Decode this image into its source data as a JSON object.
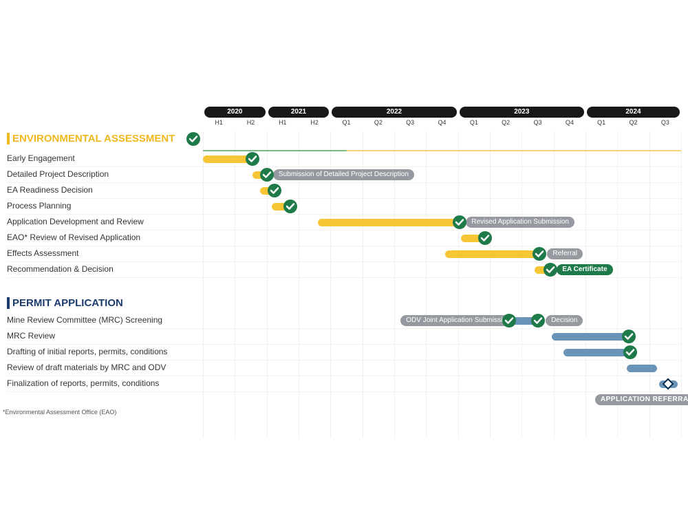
{
  "layout": {
    "label_col_width": 285,
    "timeline_width": 695,
    "total_units": 15
  },
  "colors": {
    "yellow": "#f6c637",
    "blue": "#6a93b8",
    "green": "#1e7a48",
    "gray_pill": "#969aa0",
    "black_pill": "#17181a",
    "section1_title": "#f0b81f",
    "section2_title": "#1b3b6f"
  },
  "years": [
    {
      "label": "2020",
      "start": 0,
      "span": 2,
      "subs": [
        "H1",
        "H2"
      ]
    },
    {
      "label": "2021",
      "start": 2,
      "span": 2,
      "subs": [
        "H1",
        "H2"
      ]
    },
    {
      "label": "2022",
      "start": 4,
      "span": 4,
      "subs": [
        "Q1",
        "Q2",
        "Q3",
        "Q4"
      ]
    },
    {
      "label": "2023",
      "start": 8,
      "span": 4,
      "subs": [
        "Q1",
        "Q2",
        "Q3",
        "Q4"
      ]
    },
    {
      "label": "2024",
      "start": 12,
      "span": 3,
      "subs": [
        "Q1",
        "Q2",
        "Q3"
      ]
    }
  ],
  "sections": [
    {
      "id": "env",
      "title": "ENVIRONMENTAL ASSESSMENT",
      "color": "#f0b81f",
      "title_check_at": 0,
      "rows": [
        {
          "label": "Early Engagement",
          "bars": [
            {
              "start": 0,
              "end": 1.55,
              "color": "yellow"
            }
          ],
          "checks": [
            1.55
          ]
        },
        {
          "label": "Detailed Project Description",
          "bars": [
            {
              "start": 1.55,
              "end": 2.1,
              "color": "yellow"
            }
          ],
          "checks": [
            2.0
          ],
          "pills": [
            {
              "text": "Submission of Detailed Project Description",
              "at": 2.2,
              "color": "gray"
            }
          ]
        },
        {
          "label": "EA Readiness Decision",
          "bars": [
            {
              "start": 1.8,
              "end": 2.3,
              "color": "yellow"
            }
          ],
          "checks": [
            2.25
          ]
        },
        {
          "label": "Process Planning",
          "bars": [
            {
              "start": 2.15,
              "end": 2.8,
              "color": "yellow"
            }
          ],
          "checks": [
            2.75
          ]
        },
        {
          "label": "Application Development and Review",
          "bars": [
            {
              "start": 3.6,
              "end": 8.1,
              "color": "yellow"
            }
          ],
          "checks": [
            8.05
          ],
          "pills": [
            {
              "text": "Revised Application Submission",
              "at": 8.25,
              "color": "gray"
            }
          ]
        },
        {
          "label": "EAO* Review of Revised Application",
          "bars": [
            {
              "start": 8.1,
              "end": 8.9,
              "color": "yellow"
            }
          ],
          "checks": [
            8.85
          ]
        },
        {
          "label": "Effects Assessment",
          "bars": [
            {
              "start": 7.6,
              "end": 10.6,
              "color": "yellow"
            }
          ],
          "checks": [
            10.55
          ],
          "pills": [
            {
              "text": "Referral",
              "at": 10.8,
              "color": "gray"
            }
          ]
        },
        {
          "label": "Recommendation & Decision",
          "bars": [
            {
              "start": 10.4,
              "end": 10.95,
              "color": "yellow"
            }
          ],
          "checks": [
            10.9
          ],
          "pills": [
            {
              "text": "EA Certificate",
              "at": 11.1,
              "color": "green"
            }
          ]
        }
      ]
    },
    {
      "id": "permit",
      "title": "PERMIT APPLICATION",
      "color": "#1b3b6f",
      "rows": [
        {
          "label": "Mine Review Committee (MRC) Screening",
          "bars": [
            {
              "start": 9.65,
              "end": 10.55,
              "color": "blue"
            }
          ],
          "checks": [
            9.6,
            10.5
          ],
          "pills": [
            {
              "text": "ODV Joint Application Submission",
              "at": 6.2,
              "color": "gray"
            },
            {
              "text": "Decision",
              "at": 10.75,
              "color": "gray"
            }
          ]
        },
        {
          "label": "MRC Review",
          "bars": [
            {
              "start": 10.95,
              "end": 13.4,
              "color": "blue"
            }
          ],
          "checks": [
            13.35
          ]
        },
        {
          "label": "Drafting of initial reports, permits, conditions",
          "bars": [
            {
              "start": 11.3,
              "end": 13.45,
              "color": "blue"
            }
          ],
          "checks": [
            13.4
          ]
        },
        {
          "label": "Review of draft materials by MRC and ODV",
          "bars": [
            {
              "start": 13.3,
              "end": 14.25,
              "color": "blue"
            }
          ]
        },
        {
          "label": "Finalization of reports, permits, conditions",
          "bars": [
            {
              "start": 14.3,
              "end": 14.9,
              "color": "blue"
            }
          ],
          "diamonds": [
            14.6
          ]
        }
      ],
      "footer_pill": {
        "text": "APPLICATION REFERRAL",
        "at": 12.3,
        "color": "gray"
      }
    }
  ],
  "footnote": "*Environmental Assessment Office (EAO)"
}
